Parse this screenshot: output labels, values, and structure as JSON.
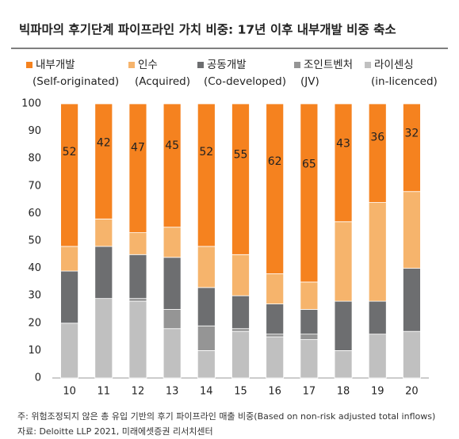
{
  "chart_data": {
    "type": "stacked_bar",
    "title": "빅파마의 후기단계 파이프라인 가치 비중: 17년 이후 내부개발 비중 축소",
    "categories": [
      "10",
      "11",
      "12",
      "13",
      "14",
      "15",
      "16",
      "17",
      "18",
      "19",
      "20"
    ],
    "series": [
      {
        "name": "내부개발",
        "name_en": "(Self-originated)",
        "color": "#f5821f",
        "data_labels": true,
        "values": [
          52,
          42,
          47,
          45,
          52,
          55,
          62,
          65,
          43,
          36,
          32
        ]
      },
      {
        "name": "인수",
        "name_en": "(Acquired)",
        "color": "#f6b46c",
        "values": [
          9,
          10,
          8,
          11,
          15,
          15,
          11,
          10,
          29,
          36,
          28
        ]
      },
      {
        "name": "공동개발",
        "name_en": "(Co-developed)",
        "color": "#6d6e70",
        "values": [
          19,
          19,
          16,
          19,
          14,
          12,
          11,
          9,
          18,
          12,
          23
        ]
      },
      {
        "name": "조인트벤처",
        "name_en": "(JV)",
        "color": "#959595",
        "values": [
          0,
          0,
          1,
          7,
          9,
          1,
          1,
          2,
          0,
          0,
          0
        ]
      },
      {
        "name": "라이센싱",
        "name_en": "(in-licenced)",
        "color": "#c0c0c0",
        "values": [
          20,
          29,
          28,
          18,
          10,
          17,
          15,
          14,
          10,
          16,
          17
        ]
      }
    ],
    "ylim": [
      0,
      100
    ],
    "yticks": [
      0,
      10,
      20,
      30,
      40,
      50,
      60,
      70,
      80,
      90,
      100
    ],
    "grid": false,
    "notes": [
      "주: 위험조정되지 않은 총 유입 기반의 후기 파이프라인 매출 비중(Based on non-risk adjusted total inflows)",
      "자료: Deloitte LLP 2021, 미래에셋증권 리서치센터"
    ]
  }
}
